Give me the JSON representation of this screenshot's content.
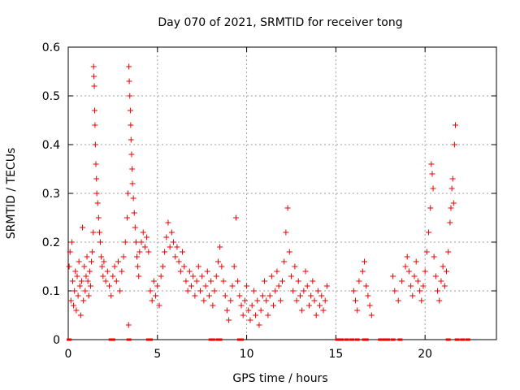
{
  "chart_data": {
    "type": "scatter",
    "marker": "plus",
    "title": "Day 070 of 2021, SRMTID for receiver tong",
    "xlabel": "GPS time / hours",
    "ylabel": "SRMTID / TECUs",
    "xlim": [
      0,
      24
    ],
    "ylim": [
      0,
      0.6
    ],
    "xticks": [
      0,
      5,
      10,
      15,
      20
    ],
    "yticks": [
      0,
      0.1,
      0.2,
      0.3,
      0.4,
      0.5,
      0.6
    ],
    "xtick_labels": [
      "0",
      "5",
      "10",
      "15",
      "20"
    ],
    "ytick_labels": [
      "0",
      "0.1",
      "0.2",
      "0.3",
      "0.4",
      "0.5",
      "0.6"
    ],
    "grid": true,
    "series_color": "#ee0000",
    "zero_value_times": [
      0.05,
      2.4,
      2.5,
      3.4,
      4.5,
      4.6,
      8.0,
      8.1,
      8.4,
      8.5,
      9.6,
      9.7,
      15.1,
      15.3,
      15.6,
      15.9,
      16.2,
      16.6,
      16.7,
      17.5,
      17.7,
      17.9,
      18.2,
      18.6,
      21.3,
      21.8,
      22.1,
      22.4
    ],
    "series": [
      {
        "name": "SRMTID",
        "points": [
          [
            0.05,
            0.15
          ],
          [
            0.1,
            0.18
          ],
          [
            0.15,
            0.08
          ],
          [
            0.2,
            0.2
          ],
          [
            0.25,
            0.12
          ],
          [
            0.3,
            0.07
          ],
          [
            0.35,
            0.1
          ],
          [
            0.4,
            0.14
          ],
          [
            0.45,
            0.06
          ],
          [
            0.5,
            0.13
          ],
          [
            0.55,
            0.09
          ],
          [
            0.6,
            0.16
          ],
          [
            0.65,
            0.11
          ],
          [
            0.7,
            0.05
          ],
          [
            0.75,
            0.12
          ],
          [
            0.8,
            0.23
          ],
          [
            0.85,
            0.08
          ],
          [
            0.9,
            0.15
          ],
          [
            0.95,
            0.1
          ],
          [
            1.0,
            0.13
          ],
          [
            1.05,
            0.17
          ],
          [
            1.1,
            0.12
          ],
          [
            1.15,
            0.09
          ],
          [
            1.2,
            0.14
          ],
          [
            1.25,
            0.11
          ],
          [
            1.3,
            0.16
          ],
          [
            1.35,
            0.18
          ],
          [
            1.4,
            0.22
          ],
          [
            1.42,
            0.56
          ],
          [
            1.44,
            0.54
          ],
          [
            1.46,
            0.52
          ],
          [
            1.48,
            0.47
          ],
          [
            1.5,
            0.44
          ],
          [
            1.52,
            0.4
          ],
          [
            1.55,
            0.36
          ],
          [
            1.58,
            0.33
          ],
          [
            1.6,
            0.3
          ],
          [
            1.65,
            0.28
          ],
          [
            1.7,
            0.25
          ],
          [
            1.75,
            0.22
          ],
          [
            1.8,
            0.2
          ],
          [
            1.85,
            0.17
          ],
          [
            1.9,
            0.15
          ],
          [
            1.95,
            0.13
          ],
          [
            2.0,
            0.16
          ],
          [
            2.1,
            0.12
          ],
          [
            2.2,
            0.14
          ],
          [
            2.3,
            0.11
          ],
          [
            2.4,
            0.09
          ],
          [
            2.5,
            0.13
          ],
          [
            2.6,
            0.15
          ],
          [
            2.7,
            0.12
          ],
          [
            2.8,
            0.16
          ],
          [
            2.9,
            0.1
          ],
          [
            3.0,
            0.14
          ],
          [
            3.1,
            0.17
          ],
          [
            3.2,
            0.2
          ],
          [
            3.3,
            0.25
          ],
          [
            3.35,
            0.3
          ],
          [
            3.38,
            0.03
          ],
          [
            3.4,
            0.56
          ],
          [
            3.42,
            0.53
          ],
          [
            3.45,
            0.5
          ],
          [
            3.48,
            0.47
          ],
          [
            3.5,
            0.44
          ],
          [
            3.52,
            0.41
          ],
          [
            3.55,
            0.38
          ],
          [
            3.58,
            0.35
          ],
          [
            3.6,
            0.32
          ],
          [
            3.65,
            0.29
          ],
          [
            3.7,
            0.26
          ],
          [
            3.75,
            0.23
          ],
          [
            3.8,
            0.2
          ],
          [
            3.85,
            0.17
          ],
          [
            3.9,
            0.15
          ],
          [
            3.95,
            0.13
          ],
          [
            4.0,
            0.18
          ],
          [
            4.1,
            0.2
          ],
          [
            4.2,
            0.22
          ],
          [
            4.3,
            0.19
          ],
          [
            4.4,
            0.21
          ],
          [
            4.5,
            0.18
          ],
          [
            4.6,
            0.1
          ],
          [
            4.7,
            0.08
          ],
          [
            4.8,
            0.12
          ],
          [
            4.9,
            0.09
          ],
          [
            5.0,
            0.11
          ],
          [
            5.1,
            0.07
          ],
          [
            5.2,
            0.13
          ],
          [
            5.3,
            0.15
          ],
          [
            5.4,
            0.18
          ],
          [
            5.5,
            0.21
          ],
          [
            5.6,
            0.24
          ],
          [
            5.7,
            0.19
          ],
          [
            5.8,
            0.22
          ],
          [
            5.9,
            0.2
          ],
          [
            6.0,
            0.17
          ],
          [
            6.1,
            0.19
          ],
          [
            6.2,
            0.16
          ],
          [
            6.3,
            0.14
          ],
          [
            6.4,
            0.18
          ],
          [
            6.5,
            0.15
          ],
          [
            6.6,
            0.12
          ],
          [
            6.7,
            0.1
          ],
          [
            6.8,
            0.14
          ],
          [
            6.9,
            0.11
          ],
          [
            7.0,
            0.13
          ],
          [
            7.1,
            0.09
          ],
          [
            7.2,
            0.12
          ],
          [
            7.3,
            0.15
          ],
          [
            7.4,
            0.1
          ],
          [
            7.5,
            0.13
          ],
          [
            7.6,
            0.08
          ],
          [
            7.7,
            0.11
          ],
          [
            7.8,
            0.14
          ],
          [
            7.9,
            0.09
          ],
          [
            8.0,
            0.12
          ],
          [
            8.1,
            0.07
          ],
          [
            8.2,
            0.1
          ],
          [
            8.3,
            0.13
          ],
          [
            8.4,
            0.16
          ],
          [
            8.5,
            0.19
          ],
          [
            8.6,
            0.15
          ],
          [
            8.7,
            0.12
          ],
          [
            8.8,
            0.09
          ],
          [
            8.9,
            0.06
          ],
          [
            9.0,
            0.04
          ],
          [
            9.1,
            0.08
          ],
          [
            9.2,
            0.11
          ],
          [
            9.3,
            0.15
          ],
          [
            9.4,
            0.25
          ],
          [
            9.5,
            0.12
          ],
          [
            9.6,
            0.09
          ],
          [
            9.7,
            0.07
          ],
          [
            9.8,
            0.05
          ],
          [
            9.9,
            0.08
          ],
          [
            10.0,
            0.11
          ],
          [
            10.1,
            0.06
          ],
          [
            10.2,
            0.04
          ],
          [
            10.3,
            0.07
          ],
          [
            10.4,
            0.1
          ],
          [
            10.5,
            0.05
          ],
          [
            10.6,
            0.08
          ],
          [
            10.7,
            0.03
          ],
          [
            10.8,
            0.06
          ],
          [
            10.9,
            0.09
          ],
          [
            11.0,
            0.12
          ],
          [
            11.1,
            0.08
          ],
          [
            11.2,
            0.05
          ],
          [
            11.3,
            0.09
          ],
          [
            11.4,
            0.13
          ],
          [
            11.5,
            0.07
          ],
          [
            11.6,
            0.1
          ],
          [
            11.7,
            0.14
          ],
          [
            11.8,
            0.11
          ],
          [
            11.9,
            0.08
          ],
          [
            12.0,
            0.12
          ],
          [
            12.1,
            0.16
          ],
          [
            12.2,
            0.22
          ],
          [
            12.3,
            0.27
          ],
          [
            12.4,
            0.18
          ],
          [
            12.5,
            0.13
          ],
          [
            12.6,
            0.1
          ],
          [
            12.7,
            0.15
          ],
          [
            12.8,
            0.08
          ],
          [
            12.9,
            0.12
          ],
          [
            13.0,
            0.09
          ],
          [
            13.1,
            0.06
          ],
          [
            13.2,
            0.1
          ],
          [
            13.3,
            0.14
          ],
          [
            13.4,
            0.11
          ],
          [
            13.5,
            0.07
          ],
          [
            13.6,
            0.09
          ],
          [
            13.7,
            0.12
          ],
          [
            13.8,
            0.08
          ],
          [
            13.9,
            0.05
          ],
          [
            14.0,
            0.1
          ],
          [
            14.1,
            0.07
          ],
          [
            14.2,
            0.09
          ],
          [
            14.3,
            0.06
          ],
          [
            14.4,
            0.08
          ],
          [
            14.5,
            0.11
          ],
          [
            16.0,
            0.1
          ],
          [
            16.1,
            0.08
          ],
          [
            16.2,
            0.06
          ],
          [
            16.3,
            0.12
          ],
          [
            16.5,
            0.14
          ],
          [
            16.6,
            0.16
          ],
          [
            16.7,
            0.11
          ],
          [
            16.8,
            0.09
          ],
          [
            16.9,
            0.07
          ],
          [
            17.0,
            0.05
          ],
          [
            18.2,
            0.13
          ],
          [
            18.3,
            0.1
          ],
          [
            18.5,
            0.08
          ],
          [
            18.7,
            0.12
          ],
          [
            18.9,
            0.15
          ],
          [
            19.0,
            0.17
          ],
          [
            19.1,
            0.14
          ],
          [
            19.2,
            0.11
          ],
          [
            19.3,
            0.09
          ],
          [
            19.4,
            0.13
          ],
          [
            19.5,
            0.16
          ],
          [
            19.6,
            0.12
          ],
          [
            19.7,
            0.1
          ],
          [
            19.8,
            0.08
          ],
          [
            19.9,
            0.11
          ],
          [
            20.0,
            0.14
          ],
          [
            20.1,
            0.18
          ],
          [
            20.2,
            0.22
          ],
          [
            20.3,
            0.27
          ],
          [
            20.35,
            0.36
          ],
          [
            20.4,
            0.34
          ],
          [
            20.45,
            0.31
          ],
          [
            20.5,
            0.17
          ],
          [
            20.6,
            0.13
          ],
          [
            20.7,
            0.1
          ],
          [
            20.8,
            0.08
          ],
          [
            20.9,
            0.12
          ],
          [
            21.0,
            0.15
          ],
          [
            21.1,
            0.11
          ],
          [
            21.2,
            0.14
          ],
          [
            21.3,
            0.18
          ],
          [
            21.4,
            0.24
          ],
          [
            21.45,
            0.27
          ],
          [
            21.5,
            0.31
          ],
          [
            21.55,
            0.33
          ],
          [
            21.6,
            0.28
          ],
          [
            21.65,
            0.4
          ],
          [
            21.7,
            0.44
          ]
        ]
      }
    ]
  }
}
